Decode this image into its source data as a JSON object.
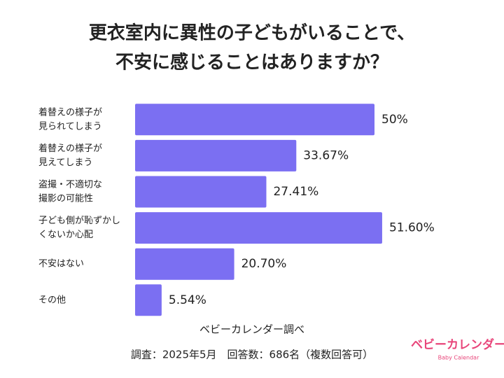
{
  "chart_data": {
    "type": "barh",
    "title": [
      "更衣室内に異性の子どもがいることで、",
      "不安に感じることはありますか？"
    ],
    "categories": [
      [
        "着替えの様子が",
        "見られてしまう"
      ],
      [
        "着替えの様子が",
        "見えてしまう"
      ],
      [
        "盗撮・不適切な",
        "撮影の可能性"
      ],
      [
        "子ども側が恥ずかし",
        "くないか心配"
      ],
      [
        "不安はない"
      ],
      [
        "その他"
      ]
    ],
    "values": [
      50,
      33.67,
      27.41,
      51.6,
      20.7,
      5.54
    ],
    "value_labels": [
      "50%",
      "33.67%",
      "27.41%",
      "51.60%",
      "20.70%",
      "5.54%"
    ],
    "color": "#7b6ff2",
    "xlim": [
      0,
      75
    ],
    "source": "ベビーカレンダー調べ",
    "note": "調査：2025年5月　回答数：686名（複数回答可）",
    "logo": {
      "name": "ベビーカレンダー",
      "sub": "Baby Calendar"
    }
  }
}
